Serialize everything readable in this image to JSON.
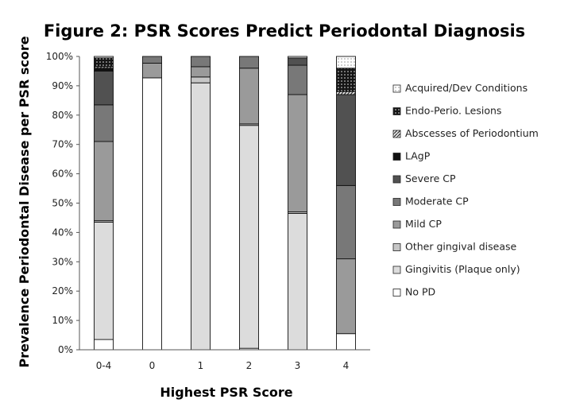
{
  "chart_data": {
    "type": "bar",
    "stacked": true,
    "percent": true,
    "title": "Figure 2: PSR Scores Predict Periodontal Diagnosis",
    "xlabel": "Highest PSR Score",
    "ylabel": "Prevalence Periodontal Disease per PSR score",
    "ylim": [
      0,
      100
    ],
    "ytick_labels": [
      "0%",
      "10%",
      "20%",
      "30%",
      "40%",
      "50%",
      "60%",
      "70%",
      "80%",
      "90%",
      "100%"
    ],
    "categories": [
      "0-4",
      "0",
      "1",
      "2",
      "3",
      "4"
    ],
    "grid": false,
    "legend_position": "right",
    "series": [
      {
        "name": "No PD",
        "color": "#ffffff",
        "values": [
          3.5,
          92.7,
          0,
          0.5,
          0,
          5.5
        ]
      },
      {
        "name": "Gingivitis (Plaque only)",
        "color": "#dcdcdc",
        "values": [
          40,
          0,
          91,
          76,
          46.5,
          0
        ]
      },
      {
        "name": "Other gingival disease",
        "color": "#c6c6c6",
        "values": [
          0.5,
          0,
          2,
          0.5,
          0.5,
          0
        ]
      },
      {
        "name": "Mild CP",
        "color": "#9a9a9a",
        "values": [
          27,
          5,
          3.5,
          19,
          40,
          25.5
        ]
      },
      {
        "name": "Moderate CP",
        "color": "#787878",
        "values": [
          12.5,
          2.3,
          3.5,
          4,
          10,
          25
        ]
      },
      {
        "name": "Severe CP",
        "color": "#515151",
        "values": [
          11.5,
          0,
          0,
          0,
          2.5,
          31
        ]
      },
      {
        "name": "LAgP",
        "color": "#111111",
        "values": [
          1,
          0,
          0,
          0,
          0,
          0
        ]
      },
      {
        "name": "Abscesses of Periodontium",
        "color": "#bbbbbb",
        "pattern": "hatch",
        "values": [
          0.5,
          0,
          0,
          0,
          0,
          1
        ]
      },
      {
        "name": "Endo-Perio. Lesions",
        "color": "#1a1a1a",
        "pattern": "dots",
        "values": [
          3,
          0,
          0,
          0,
          0,
          8
        ]
      },
      {
        "name": "Acquired/Dev Conditions",
        "color": "#ffffff",
        "pattern": "dots-light",
        "values": [
          0.5,
          0,
          0,
          0,
          0.5,
          4
        ]
      }
    ]
  }
}
